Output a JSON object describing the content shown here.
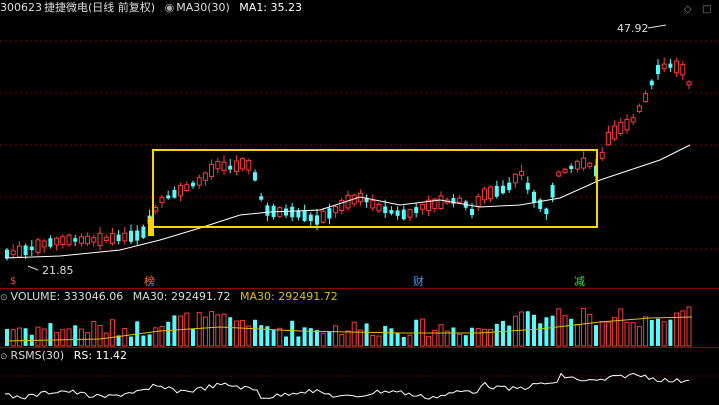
{
  "main": {
    "code": "300623",
    "name": "捷捷微电",
    "period": "(日线 前复权)",
    "indicator": "MA30(30)",
    "ma1_label": "MA1: 35.23",
    "high_label": "47.92",
    "low_label": "21.85",
    "markers": [
      {
        "id": "bang",
        "text": "榜",
        "color": "#ff6a2a"
      },
      {
        "id": "cai",
        "text": "财",
        "color": "#3aa0ff"
      },
      {
        "id": "jian",
        "text": "减",
        "color": "#3cd93c"
      },
      {
        "id": "corner",
        "text": "$",
        "color": "#ff4040"
      }
    ]
  },
  "volume": {
    "label": "VOLUME: 333046.06",
    "ma_a": "MA30: 292491.72",
    "ma_b": "MA30: 292491.72"
  },
  "rsms": {
    "label": "RSMS(30)",
    "rs": "RS: 11.42"
  },
  "colors": {
    "up": "#ff3a3a",
    "down": "#54fcfc",
    "ma": "#ffffff",
    "box": "#ffd400",
    "grid": "#7a0000",
    "vol_ma": "#e0c000"
  },
  "icons": [
    "diamond-icon",
    "square-icon"
  ],
  "chart_data": {
    "type": "candlestick",
    "price_range": [
      21.85,
      47.92
    ],
    "series": [
      {
        "name": "MA30"
      }
    ]
  }
}
